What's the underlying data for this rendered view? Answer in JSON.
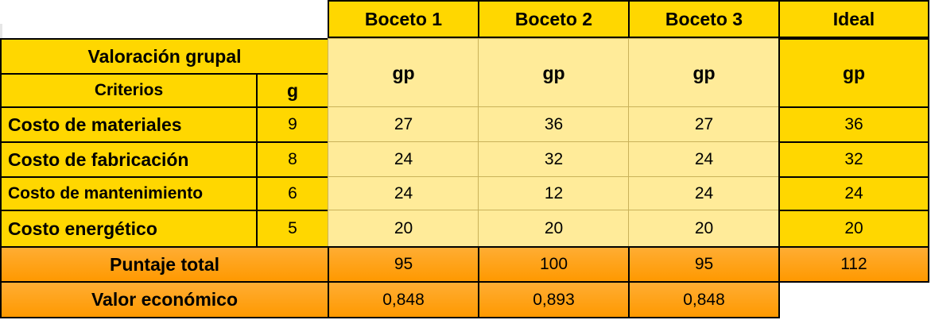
{
  "table": {
    "columns": [
      "Boceto 1",
      "Boceto 2",
      "Boceto 3",
      "Ideal"
    ],
    "group_title": "Valoración grupal",
    "criteria_header": "Criterios",
    "g_header": "g",
    "gp_header": "gp",
    "rows": [
      {
        "criterion": "Costo de materiales",
        "g": "9",
        "values": [
          "27",
          "36",
          "27",
          "36"
        ]
      },
      {
        "criterion": "Costo de fabricación",
        "g": "8",
        "values": [
          "24",
          "32",
          "24",
          "32"
        ]
      },
      {
        "criterion": "Costo de mantenimiento",
        "g": "6",
        "values": [
          "24",
          "12",
          "24",
          "24"
        ]
      },
      {
        "criterion": "Costo energético",
        "g": "5",
        "values": [
          "20",
          "20",
          "20",
          "20"
        ]
      }
    ],
    "total": {
      "label": "Puntaje total",
      "values": [
        "95",
        "100",
        "95",
        "112"
      ]
    },
    "economic": {
      "label": "Valor económico",
      "values": [
        "0,848",
        "0,893",
        "0,848"
      ]
    }
  },
  "colors": {
    "header_yellow": "#ffd700",
    "pale_yellow": "#ffeb99",
    "orange": "#ff9900",
    "border": "#000000"
  }
}
